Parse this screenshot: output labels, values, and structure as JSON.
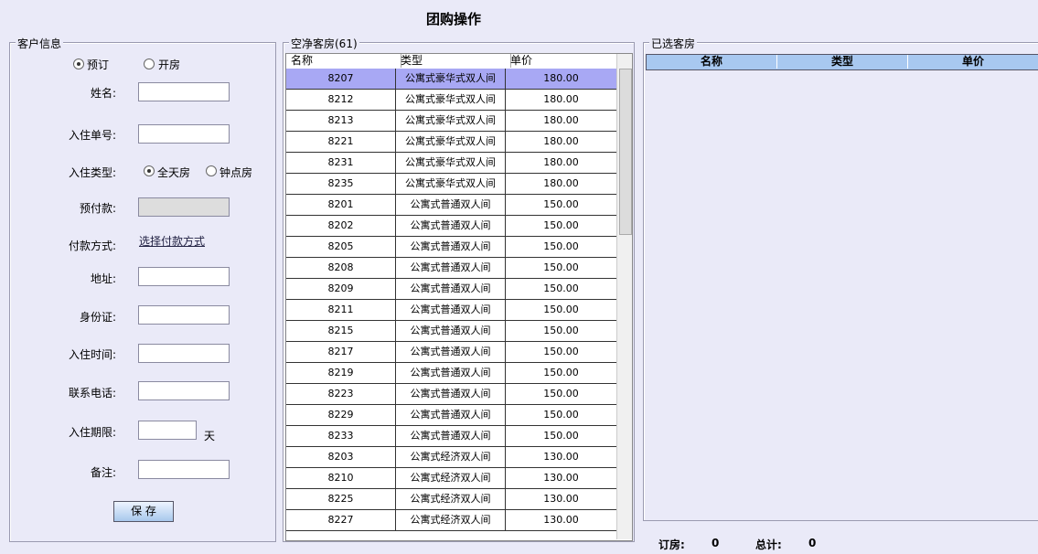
{
  "title": "团购操作",
  "customer": {
    "legend": "客户信息",
    "mode": [
      "预订",
      "开房"
    ],
    "fields": {
      "name": "姓名:",
      "order_no": "入住单号:",
      "type": "入住类型:",
      "type_options": [
        "全天房",
        "钟点房"
      ],
      "deposit": "预付款:",
      "payment": "付款方式:",
      "payment_link": "选择付款方式",
      "address": "地址:",
      "id_card": "身份证:",
      "checkin_time": "入住时间:",
      "phone": "联系电话:",
      "duration": "入住期限:",
      "duration_unit": "天",
      "note": "备注:"
    },
    "save": "保 存"
  },
  "rooms": {
    "legend": "空净客房(61)",
    "columns": [
      "名称",
      "类型",
      "单价"
    ],
    "rows": [
      [
        "8207",
        "公寓式豪华式双人间",
        "180.00"
      ],
      [
        "8212",
        "公寓式豪华式双人间",
        "180.00"
      ],
      [
        "8213",
        "公寓式豪华式双人间",
        "180.00"
      ],
      [
        "8221",
        "公寓式豪华式双人间",
        "180.00"
      ],
      [
        "8231",
        "公寓式豪华式双人间",
        "180.00"
      ],
      [
        "8235",
        "公寓式豪华式双人间",
        "180.00"
      ],
      [
        "8201",
        "公寓式普通双人间",
        "150.00"
      ],
      [
        "8202",
        "公寓式普通双人间",
        "150.00"
      ],
      [
        "8205",
        "公寓式普通双人间",
        "150.00"
      ],
      [
        "8208",
        "公寓式普通双人间",
        "150.00"
      ],
      [
        "8209",
        "公寓式普通双人间",
        "150.00"
      ],
      [
        "8211",
        "公寓式普通双人间",
        "150.00"
      ],
      [
        "8215",
        "公寓式普通双人间",
        "150.00"
      ],
      [
        "8217",
        "公寓式普通双人间",
        "150.00"
      ],
      [
        "8219",
        "公寓式普通双人间",
        "150.00"
      ],
      [
        "8223",
        "公寓式普通双人间",
        "150.00"
      ],
      [
        "8229",
        "公寓式普通双人间",
        "150.00"
      ],
      [
        "8233",
        "公寓式普通双人间",
        "150.00"
      ],
      [
        "8203",
        "公寓式经济双人间",
        "130.00"
      ],
      [
        "8210",
        "公寓式经济双人间",
        "130.00"
      ],
      [
        "8225",
        "公寓式经济双人间",
        "130.00"
      ],
      [
        "8227",
        "公寓式经济双人间",
        "130.00"
      ]
    ]
  },
  "selected": {
    "legend": "已选客房",
    "columns": [
      "名称",
      "类型",
      "单价"
    ]
  },
  "summary": {
    "booked_label": "订房:",
    "booked": "0",
    "total_label": "总计:",
    "total": "0"
  }
}
